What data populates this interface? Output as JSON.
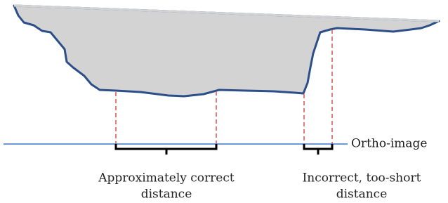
{
  "labels": {
    "ortho_image": "Ortho-image",
    "correct": [
      "Approximately correct",
      "distance"
    ],
    "incorrect": [
      "Incorrect, too-short",
      "distance"
    ]
  }
}
